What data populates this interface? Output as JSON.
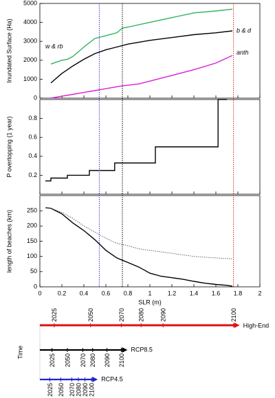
{
  "chart_data": [
    {
      "type": "line",
      "ylabel": "Inundated Surface (Ha)",
      "xlim": [
        0,
        2
      ],
      "xticks": [
        0,
        0.2,
        0.4,
        0.6,
        0.8,
        1,
        1.2,
        1.4,
        1.6,
        1.8,
        2
      ],
      "ylim": [
        0,
        5000
      ],
      "yticks": [
        0,
        1000,
        2000,
        3000,
        4000,
        5000
      ],
      "series": [
        {
          "name": "w & rb",
          "color": "#2db35a",
          "x": [
            0.1,
            0.15,
            0.2,
            0.25,
            0.3,
            0.4,
            0.5,
            0.6,
            0.7,
            0.75,
            0.8,
            1.0,
            1.2,
            1.4,
            1.6,
            1.75
          ],
          "values": [
            1800,
            1900,
            2000,
            2050,
            2200,
            2700,
            3150,
            3300,
            3450,
            3700,
            3750,
            4000,
            4250,
            4500,
            4600,
            4700
          ]
        },
        {
          "name": "b & d",
          "color": "#000000",
          "x": [
            0.1,
            0.2,
            0.3,
            0.4,
            0.5,
            0.6,
            0.7,
            0.8,
            1.0,
            1.2,
            1.4,
            1.6,
            1.75
          ],
          "values": [
            800,
            1300,
            1700,
            2050,
            2350,
            2550,
            2700,
            2850,
            3050,
            3200,
            3350,
            3450,
            3550
          ]
        },
        {
          "name": "anth",
          "color": "#d61fd6",
          "x": [
            0.1,
            0.2,
            0.3,
            0.4,
            0.5,
            0.6,
            0.75,
            0.9,
            1.0,
            1.2,
            1.4,
            1.6,
            1.75
          ],
          "values": [
            0,
            100,
            200,
            300,
            400,
            500,
            650,
            750,
            900,
            1200,
            1500,
            1850,
            2250
          ]
        }
      ]
    },
    {
      "type": "line",
      "ylabel": "P overtopping (1 year)",
      "xlim": [
        0,
        2
      ],
      "xticks": [
        0,
        0.2,
        0.4,
        0.6,
        0.8,
        1,
        1.2,
        1.4,
        1.6,
        1.8,
        2
      ],
      "ylim": [
        0,
        1
      ],
      "yticks": [
        0.2,
        0.4,
        0.6,
        0.8
      ],
      "series": [
        {
          "color": "#000000",
          "x": [
            0.05,
            0.1,
            0.1,
            0.25,
            0.25,
            0.45,
            0.45,
            0.68,
            0.68,
            1.05,
            1.05,
            1.62,
            1.62,
            1.7
          ],
          "values": [
            0.14,
            0.14,
            0.17,
            0.17,
            0.2,
            0.2,
            0.25,
            0.25,
            0.33,
            0.33,
            0.5,
            0.5,
            1,
            1
          ]
        }
      ]
    },
    {
      "type": "line",
      "ylabel": "length of beaches (km)",
      "xlabel": "SLR (m)",
      "xlim": [
        0,
        2
      ],
      "xticks": [
        0,
        0.2,
        0.4,
        0.6,
        0.8,
        1,
        1.2,
        1.4,
        1.6,
        1.8,
        2
      ],
      "ylim": [
        0,
        300
      ],
      "yticks": [
        0,
        50,
        100,
        150,
        200,
        250
      ],
      "series": [
        {
          "color": "#000000",
          "linestyle": "solid",
          "x": [
            0.05,
            0.1,
            0.2,
            0.3,
            0.4,
            0.5,
            0.6,
            0.7,
            0.8,
            0.9,
            1.0,
            1.1,
            1.2,
            1.3,
            1.4,
            1.5,
            1.6,
            1.7,
            1.75
          ],
          "values": [
            260,
            258,
            240,
            210,
            185,
            155,
            120,
            95,
            80,
            65,
            45,
            35,
            30,
            25,
            18,
            12,
            8,
            5,
            2
          ]
        },
        {
          "color": "#555555",
          "linestyle": "dotted",
          "x": [
            0.05,
            0.1,
            0.2,
            0.3,
            0.4,
            0.5,
            0.6,
            0.7,
            0.8,
            0.9,
            1.0,
            1.2,
            1.4,
            1.6,
            1.75
          ],
          "values": [
            260,
            258,
            245,
            225,
            200,
            180,
            160,
            143,
            135,
            125,
            120,
            110,
            100,
            95,
            92
          ]
        }
      ]
    },
    {
      "type": "timeline",
      "ylabel": "Time",
      "xlim": [
        0,
        2
      ],
      "markers": [
        {
          "x": 0.54,
          "color": "#3333dd"
        },
        {
          "x": 0.75,
          "color": "#000000"
        },
        {
          "x": 1.76,
          "color": "#e02020"
        }
      ],
      "series": [
        {
          "name": "High-End",
          "color": "#dd1111",
          "x": [
            0.13,
            0.46,
            0.74,
            0.92,
            1.12,
            1.76
          ],
          "values": [
            2025,
            2050,
            2070,
            2080,
            2090,
            2100
          ]
        },
        {
          "name": "RCP8.5",
          "color": "#000000",
          "x": [
            0.11,
            0.25,
            0.39,
            0.48,
            0.61,
            0.74
          ],
          "values": [
            2025,
            2050,
            2070,
            2080,
            2090,
            2100
          ]
        },
        {
          "name": "RCP4.5",
          "color": "#2222cc",
          "x": [
            0.09,
            0.19,
            0.29,
            0.35,
            0.41,
            0.47
          ],
          "values": [
            2025,
            2050,
            2070,
            2080,
            2090,
            2100
          ]
        }
      ]
    }
  ]
}
